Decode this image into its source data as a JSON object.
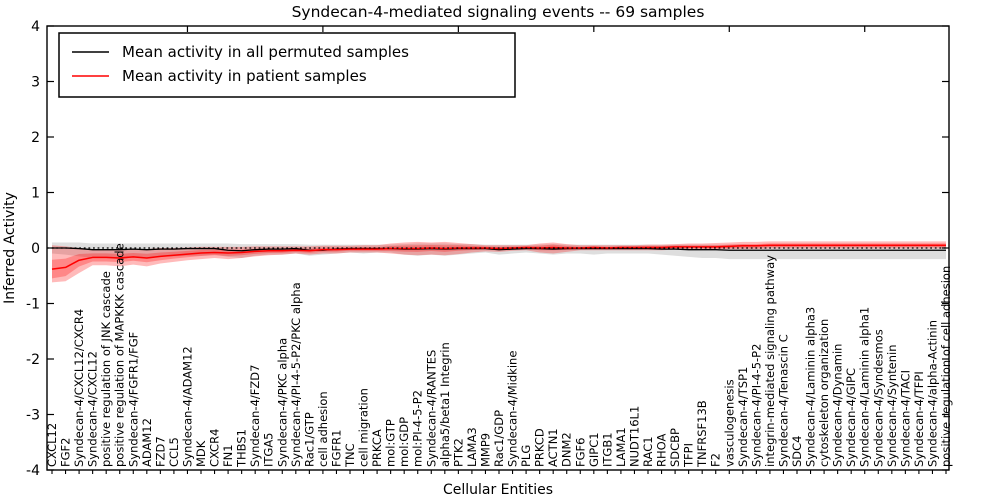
{
  "chart_data": {
    "type": "line",
    "title": "Syndecan-4-mediated signaling events -- 69 samples",
    "xlabel": "Cellular Entities",
    "ylabel": "Inferred Activity",
    "ylim": [
      -4,
      4
    ],
    "yticks": [
      4,
      3,
      2,
      1,
      0,
      -1,
      -2,
      -3,
      -4
    ],
    "ytick_labels": [
      "4",
      "3",
      "2",
      "1",
      "0",
      "-1",
      "-2",
      "-3",
      "-4"
    ],
    "grid": false,
    "legend_position": "upper left",
    "zero_line": {
      "style": "dotted",
      "y": 0,
      "color": "#000000"
    },
    "categories": [
      "CXCL12",
      "FGF2",
      "Syndecan-4/CXCL12/CXCR4",
      "Syndecan-4/CXCL12",
      "positive regulation of JNK cascade",
      "positive regulation of MAPKKK cascade",
      "Syndecan-4/FGFR1/FGF",
      "ADAM12",
      "FZD7",
      "CCL5",
      "Syndecan-4/ADAM12",
      "MDK",
      "CXCR4",
      "FN1",
      "THBS1",
      "Syndecan-4/FZD7",
      "ITGA5",
      "Syndecan-4/PKC alpha",
      "Syndecan-4/PI-4-5-P2/PKC alpha",
      "Rac1/GTP",
      "cell adhesion",
      "FGFR1",
      "TNC",
      "cell migration",
      "PRKCA",
      "mol:GTP",
      "mol:GDP",
      "mol:PI-4-5-P2",
      "Syndecan-4/RANTES",
      "alpha5/beta1 Integrin",
      "PTK2",
      "LAMA3",
      "MMP9",
      "Rac1/GDP",
      "Syndecan-4/Midkine",
      "PLG",
      "PRKCD",
      "ACTN1",
      "DNM2",
      "FGF6",
      "GIPC1",
      "ITGB1",
      "LAMA1",
      "NUDT16L1",
      "RAC1",
      "RHOA",
      "SDCBP",
      "TFPI",
      "TNFRSF13B",
      "F2",
      "vasculogenesis",
      "Syndecan-4/TSP1",
      "Syndecan-4/PI-4-5-P2",
      "integrin-mediated signaling pathway",
      "Syndecan-4/Tenascin C",
      "SDC4",
      "Syndecan-4/Laminin alpha3",
      "cytoskeleton organization",
      "Syndecan-4/Dynamin",
      "Syndecan-4/GIPC",
      "Syndecan-4/Laminin alpha1",
      "Syndecan-4/Syndesmos",
      "Syndecan-4/Syntenin",
      "Syndecan-4/TACI",
      "Syndecan-4/TFPI",
      "Syndecan-4/alpha-Actinin",
      "positive regulation of cell adhesion"
    ],
    "series": [
      {
        "name": "Mean activity in all permuted samples",
        "color": "#000000",
        "band_color": "rgba(0,0,0,0.13)",
        "values": [
          0,
          0,
          -0.01,
          -0.03,
          -0.03,
          -0.03,
          -0.02,
          -0.03,
          -0.02,
          -0.02,
          -0.01,
          -0.01,
          -0.01,
          -0.04,
          -0.05,
          -0.03,
          -0.02,
          -0.02,
          -0.01,
          -0.04,
          -0.04,
          -0.02,
          -0.01,
          -0.01,
          -0.01,
          -0.01,
          -0.02,
          -0.02,
          -0.01,
          -0.02,
          -0.01,
          -0.01,
          -0.01,
          -0.03,
          -0.02,
          -0.01,
          -0.01,
          -0.02,
          -0.01,
          -0.01,
          -0.01,
          -0.01,
          -0.01,
          -0.01,
          -0.01,
          -0.02,
          -0.02,
          -0.03,
          -0.03,
          -0.03,
          -0.04,
          -0.04,
          -0.04,
          -0.04,
          -0.04,
          -0.04,
          -0.04,
          -0.04,
          -0.04,
          -0.04,
          -0.04,
          -0.04,
          -0.04,
          -0.04,
          -0.04,
          -0.04,
          -0.04
        ],
        "band_lower": [
          -0.1,
          -0.12,
          -0.15,
          -0.18,
          -0.18,
          -0.2,
          -0.16,
          -0.18,
          -0.15,
          -0.15,
          -0.14,
          -0.14,
          -0.12,
          -0.16,
          -0.18,
          -0.14,
          -0.12,
          -0.12,
          -0.1,
          -0.14,
          -0.12,
          -0.1,
          -0.08,
          -0.1,
          -0.08,
          -0.08,
          -0.12,
          -0.14,
          -0.12,
          -0.14,
          -0.12,
          -0.1,
          -0.08,
          -0.12,
          -0.1,
          -0.08,
          -0.1,
          -0.12,
          -0.1,
          -0.1,
          -0.12,
          -0.1,
          -0.1,
          -0.1,
          -0.1,
          -0.12,
          -0.14,
          -0.16,
          -0.18,
          -0.18,
          -0.2,
          -0.2,
          -0.2,
          -0.2,
          -0.2,
          -0.2,
          -0.2,
          -0.2,
          -0.2,
          -0.2,
          -0.2,
          -0.2,
          -0.2,
          -0.2,
          -0.2,
          -0.2,
          -0.2
        ],
        "band_upper": [
          0.1,
          0.1,
          0.1,
          0.08,
          0.08,
          0.08,
          0.08,
          0.08,
          0.08,
          0.08,
          0.08,
          0.08,
          0.08,
          0.08,
          0.07,
          0.07,
          0.07,
          0.07,
          0.07,
          0.06,
          0.06,
          0.06,
          0.06,
          0.06,
          0.06,
          0.06,
          0.07,
          0.08,
          0.08,
          0.08,
          0.07,
          0.07,
          0.06,
          0.06,
          0.06,
          0.06,
          0.06,
          0.07,
          0.06,
          0.06,
          0.06,
          0.06,
          0.06,
          0.06,
          0.06,
          0.06,
          0.06,
          0.06,
          0.06,
          0.06,
          0.06,
          0.06,
          0.05,
          0.05,
          0.05,
          0.05,
          0.05,
          0.05,
          0.05,
          0.05,
          0.05,
          0.05,
          0.05,
          0.05,
          0.05,
          0.05,
          0.05
        ]
      },
      {
        "name": "Mean activity in patient samples",
        "color": "#ff0000",
        "band_color": "rgba(255,0,0,0.27)",
        "values": [
          -0.38,
          -0.35,
          -0.22,
          -0.17,
          -0.17,
          -0.18,
          -0.16,
          -0.18,
          -0.15,
          -0.13,
          -0.11,
          -0.09,
          -0.08,
          -0.09,
          -0.08,
          -0.06,
          -0.05,
          -0.05,
          -0.04,
          -0.05,
          -0.03,
          -0.03,
          -0.02,
          -0.02,
          -0.02,
          -0.01,
          -0.01,
          -0.01,
          0,
          -0.01,
          0,
          0,
          0,
          -0.01,
          0,
          0.01,
          0,
          0.01,
          0,
          0,
          0.01,
          0,
          0.01,
          0.01,
          0.01,
          0.01,
          0.02,
          0.02,
          0.02,
          0.02,
          0.03,
          0.04,
          0.04,
          0.05,
          0.05,
          0.05,
          0.05,
          0.05,
          0.05,
          0.05,
          0.05,
          0.05,
          0.05,
          0.05,
          0.05,
          0.05,
          0.05
        ],
        "band_lower": [
          -0.62,
          -0.6,
          -0.45,
          -0.31,
          -0.31,
          -0.33,
          -0.3,
          -0.33,
          -0.28,
          -0.25,
          -0.22,
          -0.2,
          -0.18,
          -0.2,
          -0.18,
          -0.15,
          -0.13,
          -0.12,
          -0.1,
          -0.12,
          -0.1,
          -0.1,
          -0.08,
          -0.08,
          -0.08,
          -0.1,
          -0.12,
          -0.13,
          -0.12,
          -0.13,
          -0.11,
          -0.08,
          -0.06,
          -0.07,
          -0.05,
          -0.04,
          -0.08,
          -0.1,
          -0.07,
          -0.04,
          -0.04,
          -0.04,
          -0.04,
          -0.04,
          -0.04,
          -0.04,
          -0.03,
          -0.02,
          -0.02,
          -0.02,
          -0.02,
          -0.02,
          -0.02,
          -0.01,
          -0.01,
          -0.01,
          -0.01,
          -0.01,
          -0.01,
          -0.01,
          -0.01,
          -0.01,
          -0.01,
          -0.01,
          -0.01,
          -0.01,
          -0.01
        ],
        "band_upper": [
          0.05,
          0.03,
          0,
          -0.02,
          -0.02,
          -0.03,
          -0.02,
          -0.02,
          0,
          0,
          0.01,
          0.02,
          0.02,
          0.02,
          0.02,
          0.03,
          0.03,
          0.03,
          0.03,
          0.03,
          0.04,
          0.04,
          0.04,
          0.05,
          0.05,
          0.08,
          0.1,
          0.11,
          0.1,
          0.11,
          0.09,
          0.07,
          0.05,
          0.05,
          0.05,
          0.05,
          0.08,
          0.1,
          0.07,
          0.05,
          0.05,
          0.05,
          0.05,
          0.05,
          0.06,
          0.06,
          0.07,
          0.08,
          0.08,
          0.09,
          0.1,
          0.11,
          0.11,
          0.12,
          0.12,
          0.12,
          0.12,
          0.12,
          0.12,
          0.12,
          0.12,
          0.12,
          0.12,
          0.12,
          0.12,
          0.12,
          0.12
        ]
      }
    ]
  }
}
